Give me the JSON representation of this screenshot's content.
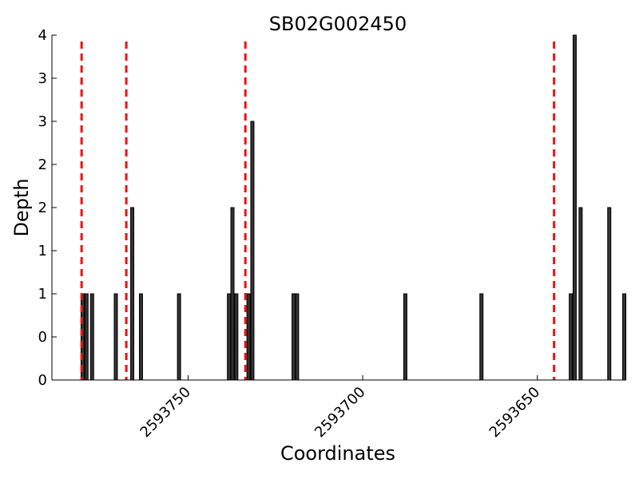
{
  "chart_data": {
    "type": "bar",
    "title": "SB02G002450",
    "xlabel": "Coordinates",
    "ylabel": "Depth",
    "x_axis_reversed": true,
    "xlim": [
      2593789,
      2593625
    ],
    "ylim": [
      0,
      4
    ],
    "y_tick_labels": [
      "0",
      "0",
      "1",
      "1",
      "2",
      "2",
      "3",
      "3",
      "4"
    ],
    "x_ticks": [
      {
        "value": 2593750,
        "label": "2593750"
      },
      {
        "value": 2593700,
        "label": "2593700"
      },
      {
        "value": 2593650,
        "label": "2593650"
      }
    ],
    "bars": [
      {
        "x": 2593780.2,
        "depth": 1
      },
      {
        "x": 2593779.1,
        "depth": 1
      },
      {
        "x": 2593777.5,
        "depth": 1
      },
      {
        "x": 2593770.7,
        "depth": 1
      },
      {
        "x": 2593766.0,
        "depth": 2
      },
      {
        "x": 2593763.5,
        "depth": 1
      },
      {
        "x": 2593752.6,
        "depth": 1
      },
      {
        "x": 2593738.3,
        "depth": 1
      },
      {
        "x": 2593737.3,
        "depth": 2
      },
      {
        "x": 2593736.2,
        "depth": 1
      },
      {
        "x": 2593732.7,
        "depth": 1
      },
      {
        "x": 2593731.6,
        "depth": 3
      },
      {
        "x": 2593719.8,
        "depth": 1
      },
      {
        "x": 2593718.8,
        "depth": 1
      },
      {
        "x": 2593687.8,
        "depth": 1
      },
      {
        "x": 2593666.0,
        "depth": 1
      },
      {
        "x": 2593640.4,
        "depth": 1
      },
      {
        "x": 2593639.3,
        "depth": 4
      },
      {
        "x": 2593637.6,
        "depth": 2
      },
      {
        "x": 2593629.4,
        "depth": 2
      },
      {
        "x": 2593625.1,
        "depth": 1
      }
    ],
    "markers": [
      2593780.5,
      2593767.7,
      2593733.6,
      2593645.2
    ],
    "grid": false,
    "colors": {
      "bar_fill": "#333333",
      "bar_edge": "#000000",
      "marker": "#ee1111"
    }
  }
}
